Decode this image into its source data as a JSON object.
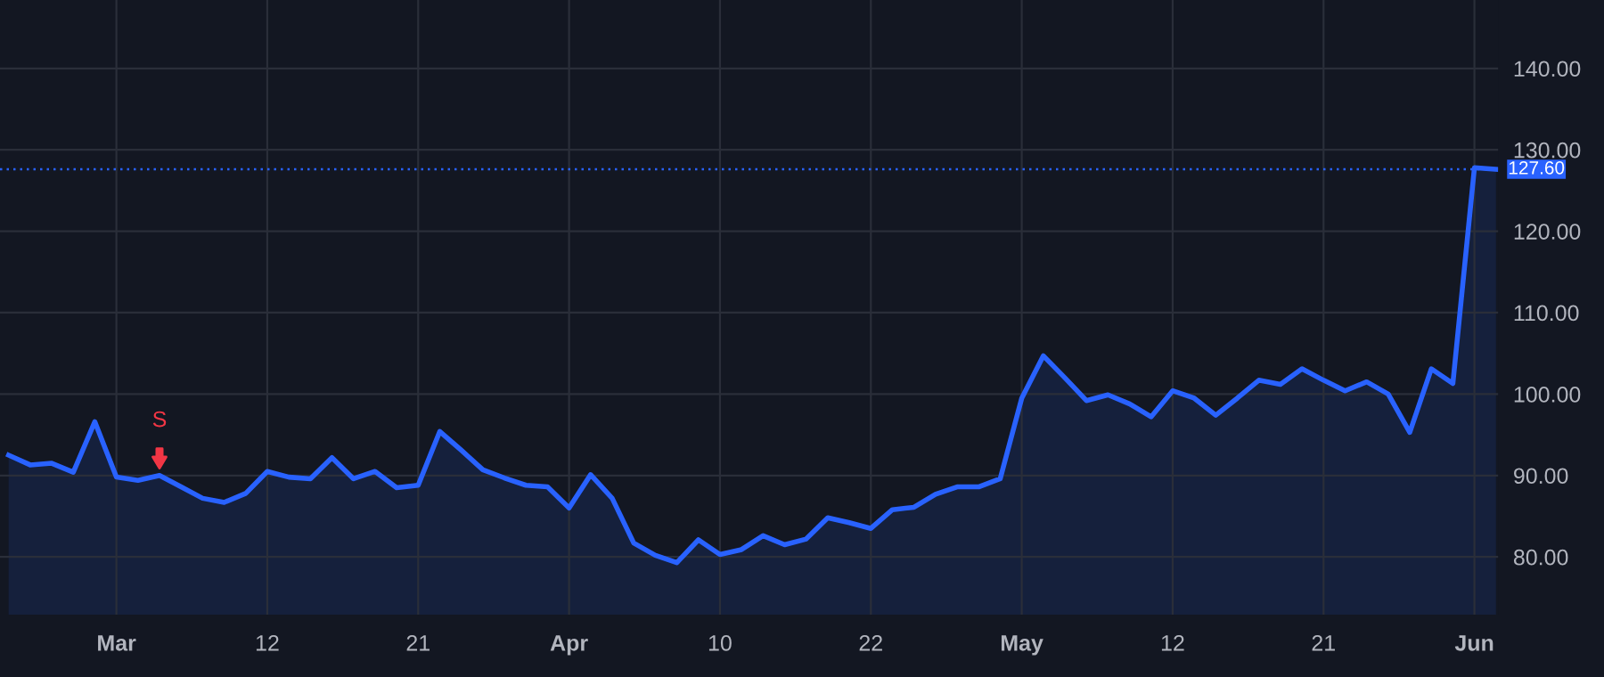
{
  "chart_data": {
    "type": "area",
    "categories": [
      null,
      null,
      null,
      null,
      null,
      "Mar",
      null,
      null,
      null,
      null,
      null,
      null,
      "12",
      null,
      null,
      null,
      null,
      null,
      null,
      "21",
      null,
      null,
      null,
      null,
      null,
      null,
      "Apr",
      null,
      null,
      null,
      null,
      null,
      null,
      "10",
      null,
      null,
      null,
      null,
      null,
      null,
      "22",
      null,
      null,
      null,
      null,
      null,
      null,
      "May",
      null,
      null,
      null,
      null,
      null,
      null,
      "12",
      null,
      null,
      null,
      null,
      null,
      null,
      "21",
      null,
      null,
      null,
      null,
      null,
      null,
      "Jun",
      null
    ],
    "series": [
      {
        "color": "#2962ff",
        "values": [
          92.5,
          91.3,
          91.5,
          90.4,
          96.6,
          89.8,
          89.4,
          90.0,
          88.6,
          87.2,
          86.7,
          87.8,
          90.5,
          89.8,
          89.6,
          92.2,
          89.6,
          90.5,
          88.5,
          88.8,
          95.4,
          93.1,
          90.7,
          89.7,
          88.8,
          88.6,
          86.0,
          90.1,
          87.2,
          81.7,
          80.2,
          79.3,
          82.1,
          80.3,
          80.9,
          82.6,
          81.5,
          82.2,
          84.8,
          84.2,
          83.5,
          85.8,
          86.1,
          87.7,
          88.6,
          88.6,
          89.6,
          99.5,
          104.7,
          102.0,
          99.2,
          99.9,
          98.8,
          97.2,
          100.4,
          99.5,
          97.4,
          99.5,
          101.7,
          101.2,
          103.1,
          101.7,
          100.4,
          101.5,
          100.0,
          95.3,
          103.1,
          101.3,
          127.8,
          127.6
        ]
      }
    ],
    "ylim": [
      72.9,
      148.4
    ],
    "yticks": [
      {
        "value": 80,
        "label": "80.00"
      },
      {
        "value": 90,
        "label": "90.00"
      },
      {
        "value": 100,
        "label": "100.00"
      },
      {
        "value": 110,
        "label": "110.00"
      },
      {
        "value": 120,
        "label": "120.00"
      },
      {
        "value": 130,
        "label": "130.00"
      },
      {
        "value": 140,
        "label": "140.00"
      }
    ],
    "ref_lines": [
      {
        "axis": "y",
        "value": 127.6,
        "label": "127.60",
        "color": "#2962ff",
        "line_style": "dotted"
      }
    ],
    "annotations": [
      {
        "text": "S",
        "y": 90.0
      }
    ],
    "grid": true
  }
}
